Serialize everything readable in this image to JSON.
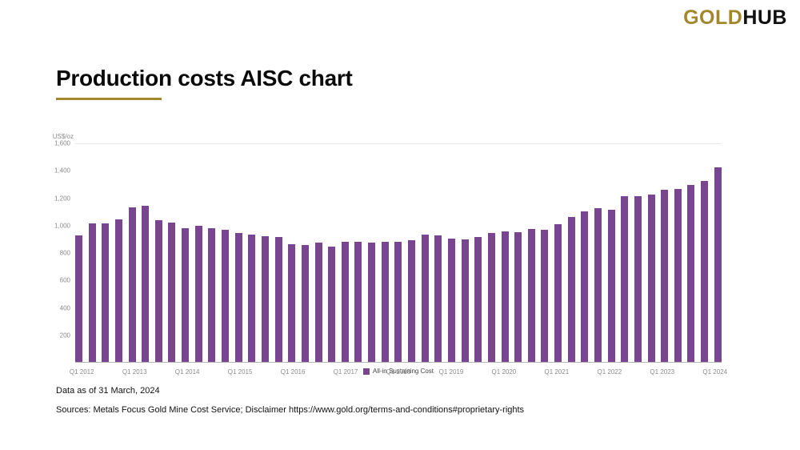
{
  "brand": {
    "gold": "GOLD",
    "hub": "HUB"
  },
  "page_title": "Production costs AISC chart",
  "footer": {
    "data_as_of": "Data as of 31 March, 2024",
    "sources": "Sources: Metals Focus Gold Mine Cost Service; Disclaimer https://www.gold.org/terms-and-conditions#proprietary-rights"
  },
  "chart_data": {
    "type": "bar",
    "title": "Production costs AISC chart",
    "ylabel": "US$/oz",
    "xlabel": "",
    "ylim": [
      0,
      1600
    ],
    "ytick_values": [
      200,
      400,
      600,
      800,
      1000,
      1200,
      1400,
      1600
    ],
    "ytick_labels": [
      "200",
      "400",
      "600",
      "800",
      "1,000",
      "1,200",
      "1,400",
      "1,600"
    ],
    "bar_color": "#7a4590",
    "legend_label": "All-in Sustaining Cost",
    "legend_position": "bottom center",
    "grid": "top gridline only",
    "categories": [
      "Q1 2012",
      "Q2 2012",
      "Q3 2012",
      "Q4 2012",
      "Q1 2013",
      "Q2 2013",
      "Q3 2013",
      "Q4 2013",
      "Q1 2014",
      "Q2 2014",
      "Q3 2014",
      "Q4 2014",
      "Q1 2015",
      "Q2 2015",
      "Q3 2015",
      "Q4 2015",
      "Q1 2016",
      "Q2 2016",
      "Q3 2016",
      "Q4 2016",
      "Q1 2017",
      "Q2 2017",
      "Q3 2017",
      "Q4 2017",
      "Q1 2018",
      "Q2 2018",
      "Q3 2018",
      "Q4 2018",
      "Q1 2019",
      "Q2 2019",
      "Q3 2019",
      "Q4 2019",
      "Q1 2020",
      "Q2 2020",
      "Q3 2020",
      "Q4 2020",
      "Q1 2021",
      "Q2 2021",
      "Q3 2021",
      "Q4 2021",
      "Q1 2022",
      "Q2 2022",
      "Q3 2022",
      "Q4 2022",
      "Q1 2023",
      "Q2 2023",
      "Q3 2023",
      "Q4 2023",
      "Q1 2024"
    ],
    "values": [
      930,
      1015,
      1020,
      1050,
      1135,
      1150,
      1040,
      1025,
      985,
      1000,
      985,
      970,
      950,
      935,
      925,
      920,
      865,
      860,
      875,
      845,
      880,
      885,
      875,
      880,
      885,
      895,
      935,
      930,
      905,
      900,
      920,
      950,
      960,
      955,
      975,
      970,
      1010,
      1065,
      1105,
      1130,
      1120,
      1215,
      1220,
      1230,
      1265,
      1270,
      1300,
      1330,
      1430
    ],
    "x_tick_indices": [
      0,
      4,
      8,
      12,
      16,
      20,
      24,
      28,
      32,
      36,
      40,
      44,
      48
    ],
    "x_tick_labels": [
      "Q1 2012",
      "Q1 2013",
      "Q1 2014",
      "Q1 2015",
      "Q1 2016",
      "Q1 2017",
      "Q1 2018",
      "Q1 2019",
      "Q1 2020",
      "Q1 2021",
      "Q1 2022",
      "Q1 2023",
      "Q1 2024"
    ]
  }
}
